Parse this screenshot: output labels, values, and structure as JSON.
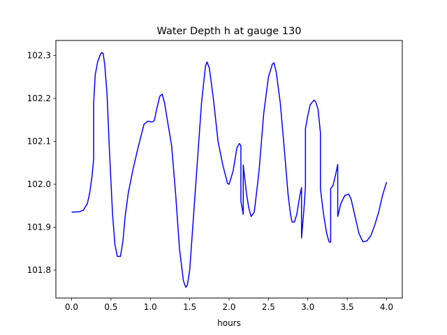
{
  "chart_data": {
    "type": "line",
    "title": "Water Depth h at gauge 130",
    "xlabel": "hours",
    "ylabel": "",
    "xlim": [
      -0.2,
      4.2
    ],
    "ylim": [
      101.735,
      102.335
    ],
    "grid": false,
    "x_ticks": [
      0.0,
      0.5,
      1.0,
      1.5,
      2.0,
      2.5,
      3.0,
      3.5,
      4.0
    ],
    "x_tick_labels": [
      "0.0",
      "0.5",
      "1.0",
      "1.5",
      "2.0",
      "2.5",
      "3.0",
      "3.5",
      "4.0"
    ],
    "y_ticks": [
      101.8,
      101.9,
      102.0,
      102.1,
      102.2,
      102.3
    ],
    "y_tick_labels": [
      "101.8",
      "101.9",
      "102.0",
      "102.1",
      "102.2",
      "102.3"
    ],
    "series": [
      {
        "color": "#0000ff",
        "x": [
          0.0,
          0.1,
          0.15,
          0.2,
          0.23,
          0.26,
          0.28,
          0.28,
          0.3,
          0.33,
          0.36,
          0.38,
          0.4,
          0.42,
          0.45,
          0.48,
          0.52,
          0.55,
          0.58,
          0.62,
          0.65,
          0.68,
          0.72,
          0.78,
          0.85,
          0.92,
          0.97,
          1.02,
          1.05,
          1.08,
          1.12,
          1.15,
          1.18,
          1.22,
          1.27,
          1.32,
          1.37,
          1.42,
          1.45,
          1.47,
          1.5,
          1.55,
          1.6,
          1.65,
          1.7,
          1.72,
          1.75,
          1.8,
          1.86,
          1.92,
          1.98,
          2.0,
          2.05,
          2.1,
          2.13,
          2.15,
          2.15,
          2.18,
          2.18,
          2.22,
          2.25,
          2.28,
          2.32,
          2.38,
          2.44,
          2.5,
          2.55,
          2.57,
          2.6,
          2.65,
          2.7,
          2.75,
          2.78,
          2.8,
          2.83,
          2.86,
          2.9,
          2.92,
          2.92,
          2.95,
          2.97,
          2.97,
          3.0,
          3.03,
          3.05,
          3.08,
          3.1,
          3.13,
          3.16,
          3.16,
          3.2,
          3.24,
          3.27,
          3.29,
          3.29,
          3.32,
          3.35,
          3.38,
          3.38,
          3.42,
          3.47,
          3.52,
          3.55,
          3.6,
          3.65,
          3.7,
          3.75,
          3.8,
          3.85,
          3.9,
          3.95,
          4.0
        ],
        "y": [
          101.935,
          101.936,
          101.94,
          101.955,
          101.98,
          102.02,
          102.06,
          102.19,
          102.255,
          102.285,
          102.3,
          102.307,
          102.305,
          102.28,
          102.21,
          102.08,
          101.93,
          101.86,
          101.832,
          101.832,
          101.865,
          101.925,
          101.98,
          102.035,
          102.09,
          102.14,
          102.147,
          102.145,
          102.148,
          102.175,
          102.205,
          102.21,
          102.19,
          102.145,
          102.09,
          101.98,
          101.85,
          101.775,
          101.76,
          101.765,
          101.8,
          101.93,
          102.06,
          102.19,
          102.275,
          102.285,
          102.27,
          102.2,
          102.1,
          102.045,
          102.002,
          102.0,
          102.03,
          102.085,
          102.095,
          102.09,
          101.96,
          101.93,
          102.045,
          101.98,
          101.945,
          101.925,
          101.935,
          102.03,
          102.165,
          102.25,
          102.28,
          102.283,
          102.26,
          102.19,
          102.085,
          101.975,
          101.93,
          101.912,
          101.912,
          101.93,
          101.975,
          101.992,
          101.875,
          101.94,
          101.995,
          102.13,
          102.16,
          102.185,
          102.19,
          102.196,
          102.192,
          102.175,
          102.12,
          101.99,
          101.93,
          101.885,
          101.866,
          101.865,
          101.99,
          101.997,
          102.02,
          102.046,
          101.925,
          101.955,
          101.974,
          101.977,
          101.965,
          101.925,
          101.885,
          101.866,
          101.868,
          101.88,
          101.905,
          101.935,
          101.975,
          102.005
        ]
      }
    ]
  }
}
